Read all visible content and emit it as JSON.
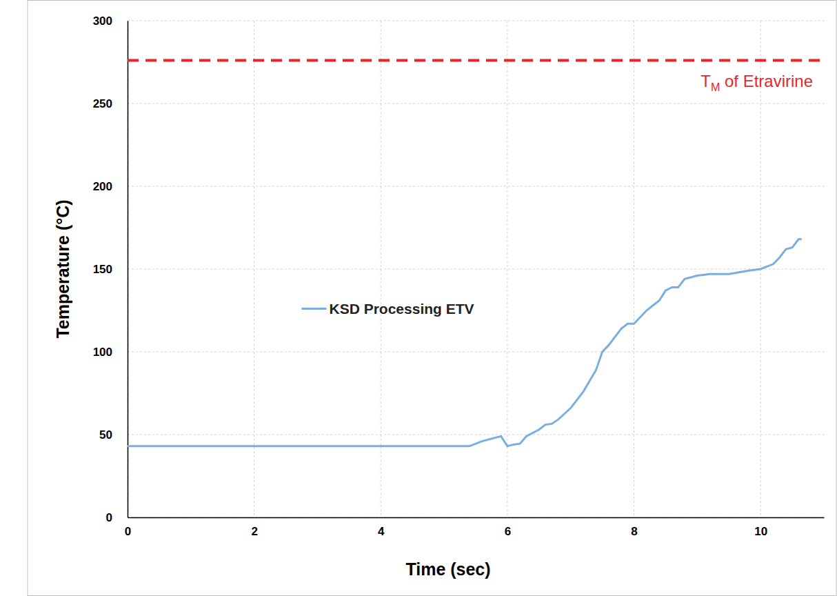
{
  "chart_data": {
    "type": "line",
    "x_label": "Time (sec)",
    "y_label": "Temperature (°C)",
    "xlim": [
      0,
      11
    ],
    "xticks": [
      0,
      2,
      4,
      6,
      8,
      10
    ],
    "ylim": [
      0,
      300
    ],
    "yticks": [
      0,
      50,
      100,
      150,
      200,
      250,
      300
    ],
    "grid": true,
    "legend": "left",
    "x": [
      0,
      1,
      2,
      3,
      4,
      5,
      5.4,
      5.6,
      5.8,
      5.9,
      6.0,
      6.1,
      6.2,
      6.3,
      6.5,
      6.6,
      6.7,
      6.8,
      7.0,
      7.2,
      7.4,
      7.5,
      7.6,
      7.8,
      7.9,
      8.0,
      8.2,
      8.3,
      8.4,
      8.5,
      8.6,
      8.7,
      8.8,
      8.9,
      9.0,
      9.2,
      9.5,
      9.8,
      10.0,
      10.2,
      10.3,
      10.4,
      10.5,
      10.6,
      10.65
    ],
    "series": [
      {
        "name": "KSD Processing ETV",
        "color": "#7aaee0",
        "line_style": "solid",
        "values": [
          43,
          43,
          43,
          43,
          43,
          43,
          43,
          46,
          48,
          49,
          43,
          44,
          44.5,
          49,
          53,
          56,
          56.5,
          59,
          66,
          76,
          89,
          100,
          104,
          114,
          117,
          117,
          125,
          128,
          131,
          137,
          139,
          139,
          144,
          145,
          146,
          147,
          147,
          149,
          150,
          153,
          157,
          162,
          163,
          168,
          168
        ]
      }
    ],
    "threshold": {
      "value": 276,
      "color": "#e8262a",
      "line_style": "dashed",
      "label": {
        "text": "T",
        "subscript": "M",
        "suffix": " of Etravirine"
      }
    }
  }
}
